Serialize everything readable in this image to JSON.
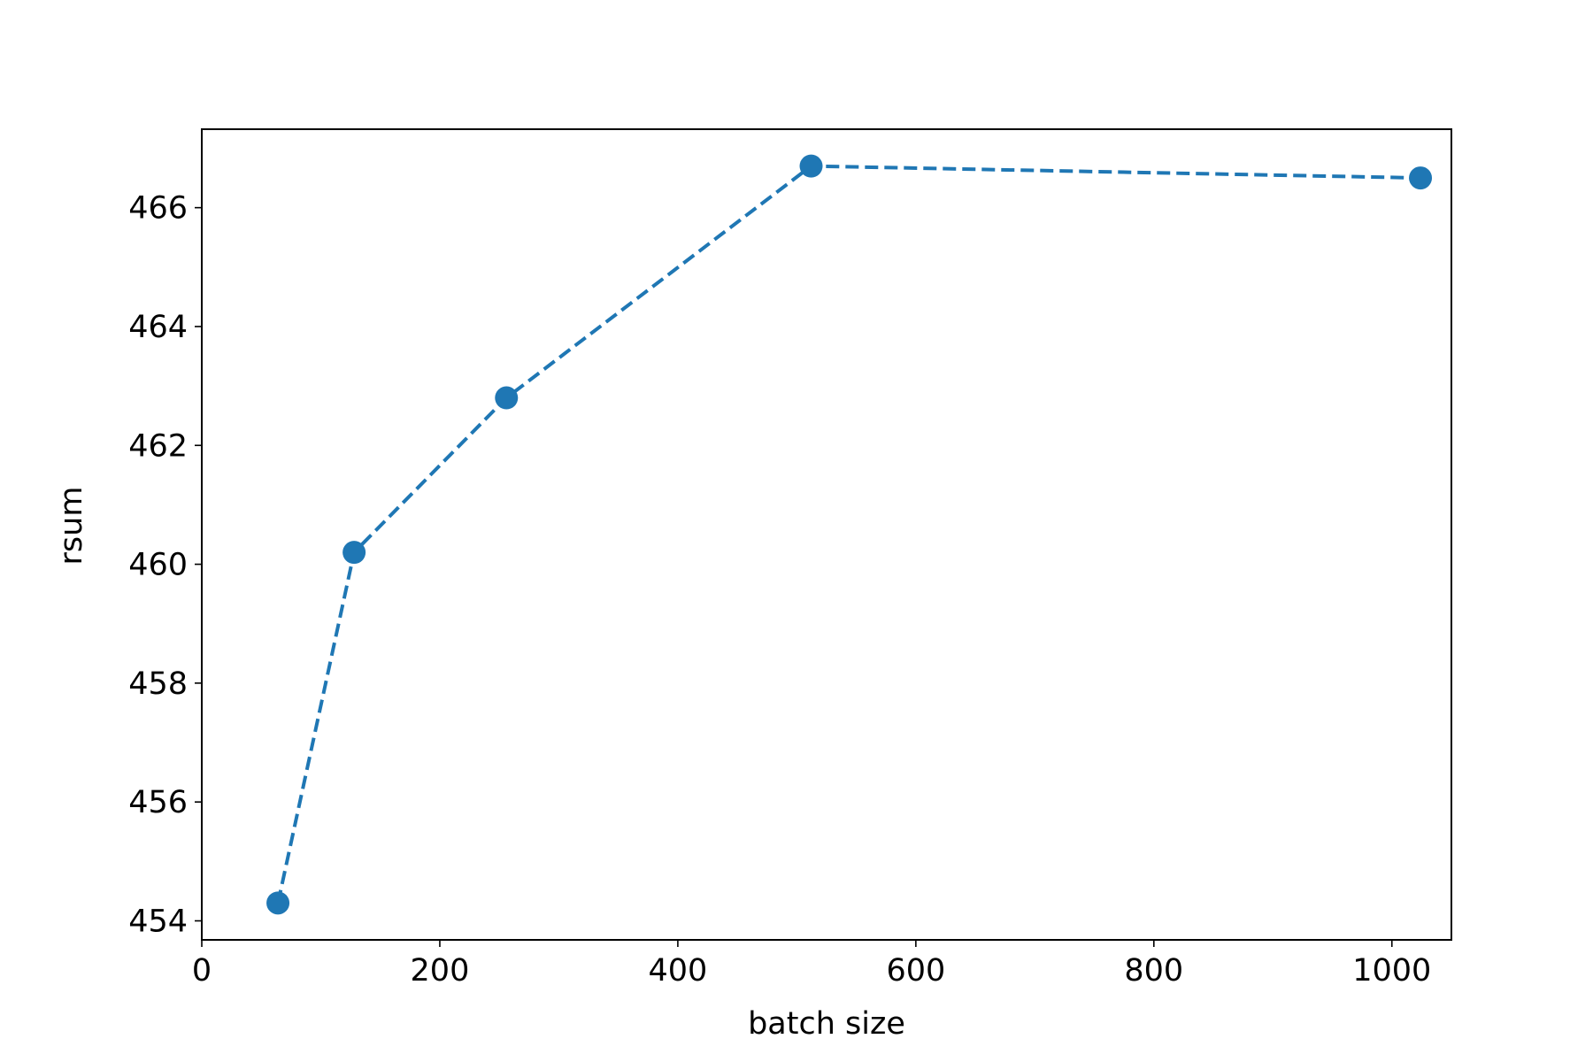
{
  "chart_data": {
    "type": "line",
    "xlabel": "batch size",
    "ylabel": "rsum",
    "x": [
      64,
      128,
      256,
      512,
      1024
    ],
    "series": [
      {
        "color": "#1f77b4",
        "values": [
          454.3,
          460.2,
          462.8,
          466.7,
          466.5
        ]
      }
    ],
    "xlim": [
      0,
      1050
    ],
    "ylim": [
      453.68,
      467.32
    ],
    "xticks": [
      0,
      200,
      400,
      600,
      800,
      1000
    ],
    "yticks": [
      454,
      456,
      458,
      460,
      462,
      464,
      466
    ],
    "line_style": "dashed",
    "marker": "circle",
    "grid": false
  }
}
